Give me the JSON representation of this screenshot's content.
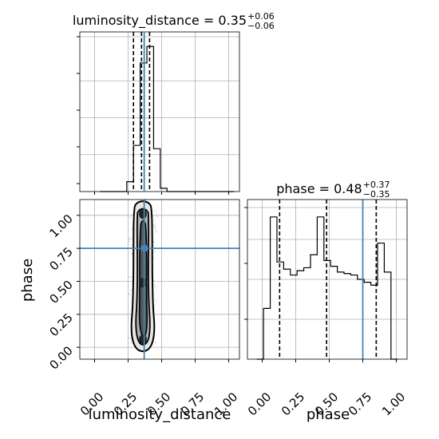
{
  "chart_data": {
    "type": "corner",
    "parameters": [
      "luminosity_distance",
      "phase"
    ],
    "truths": {
      "luminosity_distance": 0.37,
      "phase": 0.75
    },
    "truth_color": "#4682b4",
    "titles": {
      "luminosity_distance": {
        "prefix": "luminosity_distance = ",
        "value": "0.35",
        "plus": "+0.06",
        "minus": "−0.06"
      },
      "phase": {
        "prefix": "phase = ",
        "value": "0.48",
        "plus": "+0.37",
        "minus": "−0.35"
      }
    },
    "axis_labels": {
      "x_left": "luminosity_distance",
      "x_right": "phase",
      "y_lower": "phase"
    },
    "x_ticks": [
      "0.00",
      "0.25",
      "0.50",
      "0.75",
      "1.00"
    ],
    "y_ticks": [
      "0.00",
      "0.25",
      "0.50",
      "0.75",
      "1.00"
    ],
    "grid": true,
    "hist_luminosity_distance": {
      "bin_edges": [
        0.04,
        0.09,
        0.14,
        0.19,
        0.24,
        0.29,
        0.34,
        0.39,
        0.44,
        0.49,
        0.54,
        0.59,
        0.64,
        0.69,
        0.74,
        0.79,
        0.84,
        0.89,
        0.94,
        0.99,
        1.04
      ],
      "counts": [
        0,
        0,
        0,
        0,
        3,
        14,
        39,
        44,
        13,
        1,
        0,
        0,
        0,
        0,
        0,
        0,
        0,
        0,
        0,
        0
      ],
      "ymax": 46,
      "quantiles": [
        0.29,
        0.35,
        0.41
      ]
    },
    "hist_phase": {
      "bin_edges": [
        -0.04,
        0.01,
        0.06,
        0.11,
        0.16,
        0.21,
        0.26,
        0.31,
        0.36,
        0.41,
        0.46,
        0.51,
        0.56,
        0.61,
        0.66,
        0.71,
        0.76,
        0.81,
        0.86,
        0.91,
        0.96,
        1.01
      ],
      "counts": [
        0,
        0.35,
        0.98,
        0.67,
        0.62,
        0.58,
        0.61,
        0.63,
        0.72,
        0.98,
        0.68,
        0.64,
        0.6,
        0.59,
        0.58,
        0.55,
        0.53,
        0.51,
        0.8,
        0.6,
        0.0
      ],
      "ymax": 1.1,
      "quantiles": [
        0.13,
        0.48,
        0.85
      ]
    },
    "scatter_2d": {
      "x_center": 0.36,
      "x_spread": 0.04,
      "y_range": [
        0.03,
        1.07
      ]
    }
  }
}
